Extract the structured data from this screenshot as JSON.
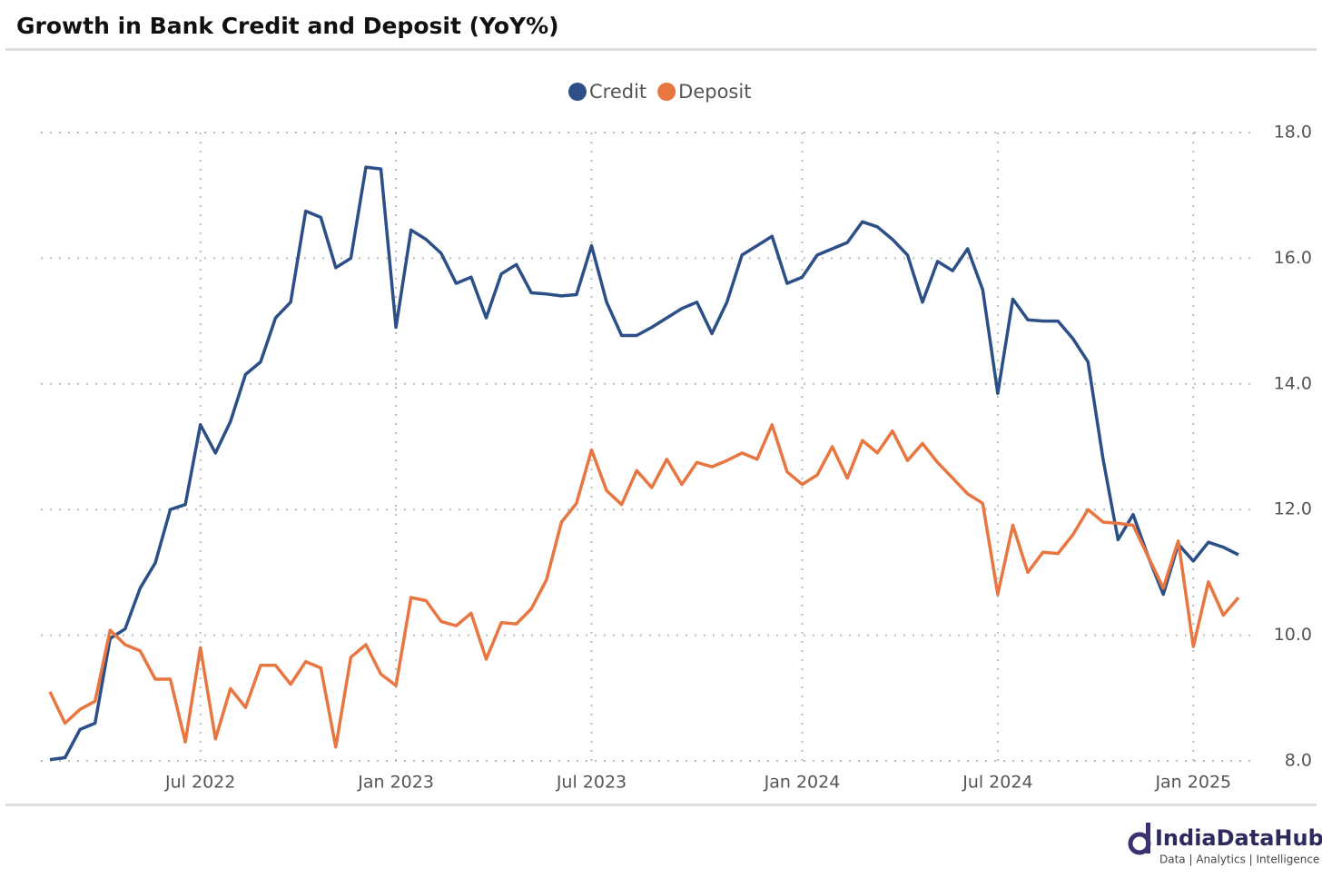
{
  "chart_data": {
    "type": "line",
    "title": "Growth in Bank Credit and Deposit (YoY%)",
    "categories": [
      null,
      null,
      null,
      null,
      null,
      null,
      null,
      null,
      null,
      null,
      "Jul 2022",
      null,
      null,
      null,
      null,
      null,
      null,
      null,
      null,
      null,
      null,
      null,
      null,
      "Jan 2023",
      null,
      null,
      null,
      null,
      null,
      null,
      null,
      null,
      null,
      null,
      null,
      null,
      "Jul 2023",
      null,
      null,
      null,
      null,
      null,
      null,
      null,
      null,
      null,
      null,
      null,
      null,
      null,
      "Jan 2024",
      null,
      null,
      null,
      null,
      null,
      null,
      null,
      null,
      null,
      null,
      null,
      null,
      "Jul 2024",
      null,
      null,
      null,
      null,
      null,
      null,
      null,
      null,
      null,
      null,
      null,
      null,
      "Jan 2025",
      null,
      null,
      null
    ],
    "series": [
      {
        "name": "Credit",
        "color": "#2b4f86",
        "values": [
          8.02,
          8.05,
          8.5,
          8.6,
          9.95,
          10.1,
          10.75,
          11.15,
          12.0,
          12.08,
          13.35,
          12.9,
          13.4,
          14.15,
          14.35,
          15.05,
          15.3,
          16.75,
          16.65,
          15.85,
          16.0,
          17.45,
          17.42,
          14.9,
          16.45,
          16.3,
          16.08,
          15.6,
          15.7,
          15.05,
          15.75,
          15.9,
          15.45,
          15.43,
          15.4,
          15.42,
          16.2,
          15.3,
          14.77,
          14.77,
          14.9,
          15.05,
          15.2,
          15.3,
          14.8,
          15.3,
          16.05,
          16.2,
          16.35,
          15.6,
          15.7,
          16.05,
          16.15,
          16.25,
          16.58,
          16.5,
          16.3,
          16.05,
          15.3,
          15.95,
          15.8,
          16.15,
          15.5,
          13.85,
          15.35,
          15.02,
          15.0,
          15.0,
          14.72,
          14.35,
          12.8,
          11.52,
          11.92,
          11.25,
          10.65,
          11.45,
          11.18,
          11.48,
          11.4,
          11.28
        ]
      },
      {
        "name": "Deposit",
        "color": "#e87640",
        "values": [
          9.1,
          8.6,
          8.82,
          8.95,
          10.08,
          9.85,
          9.75,
          9.3,
          9.3,
          8.3,
          9.8,
          8.35,
          9.15,
          8.85,
          9.52,
          9.52,
          9.22,
          9.58,
          9.48,
          8.22,
          9.65,
          9.85,
          9.38,
          9.2,
          10.6,
          10.55,
          10.22,
          10.15,
          10.35,
          9.62,
          10.2,
          10.18,
          10.42,
          10.88,
          11.8,
          12.1,
          12.95,
          12.3,
          12.08,
          12.62,
          12.35,
          12.8,
          12.4,
          12.75,
          12.68,
          12.78,
          12.9,
          12.8,
          13.35,
          12.6,
          12.4,
          12.55,
          13.0,
          12.5,
          13.1,
          12.9,
          13.25,
          12.78,
          13.05,
          12.75,
          12.5,
          12.25,
          12.1,
          10.65,
          11.75,
          11.0,
          11.32,
          11.3,
          11.6,
          12.0,
          11.8,
          11.78,
          11.75,
          11.25,
          10.75,
          11.5,
          9.82,
          10.85,
          10.32,
          10.6
        ]
      }
    ],
    "ylim": [
      8,
      18
    ],
    "yticks": [
      {
        "value": 8,
        "label": "8.0"
      },
      {
        "value": 10,
        "label": "10.0"
      },
      {
        "value": 12,
        "label": "12.0"
      },
      {
        "value": 14,
        "label": "14.0"
      },
      {
        "value": 16,
        "label": "16.0"
      },
      {
        "value": 18,
        "label": "18.0"
      }
    ],
    "grid": true,
    "legend": "top"
  },
  "branding": {
    "name": "IndiaDataHub",
    "tagline": "Data | Analytics | Intelligence"
  }
}
